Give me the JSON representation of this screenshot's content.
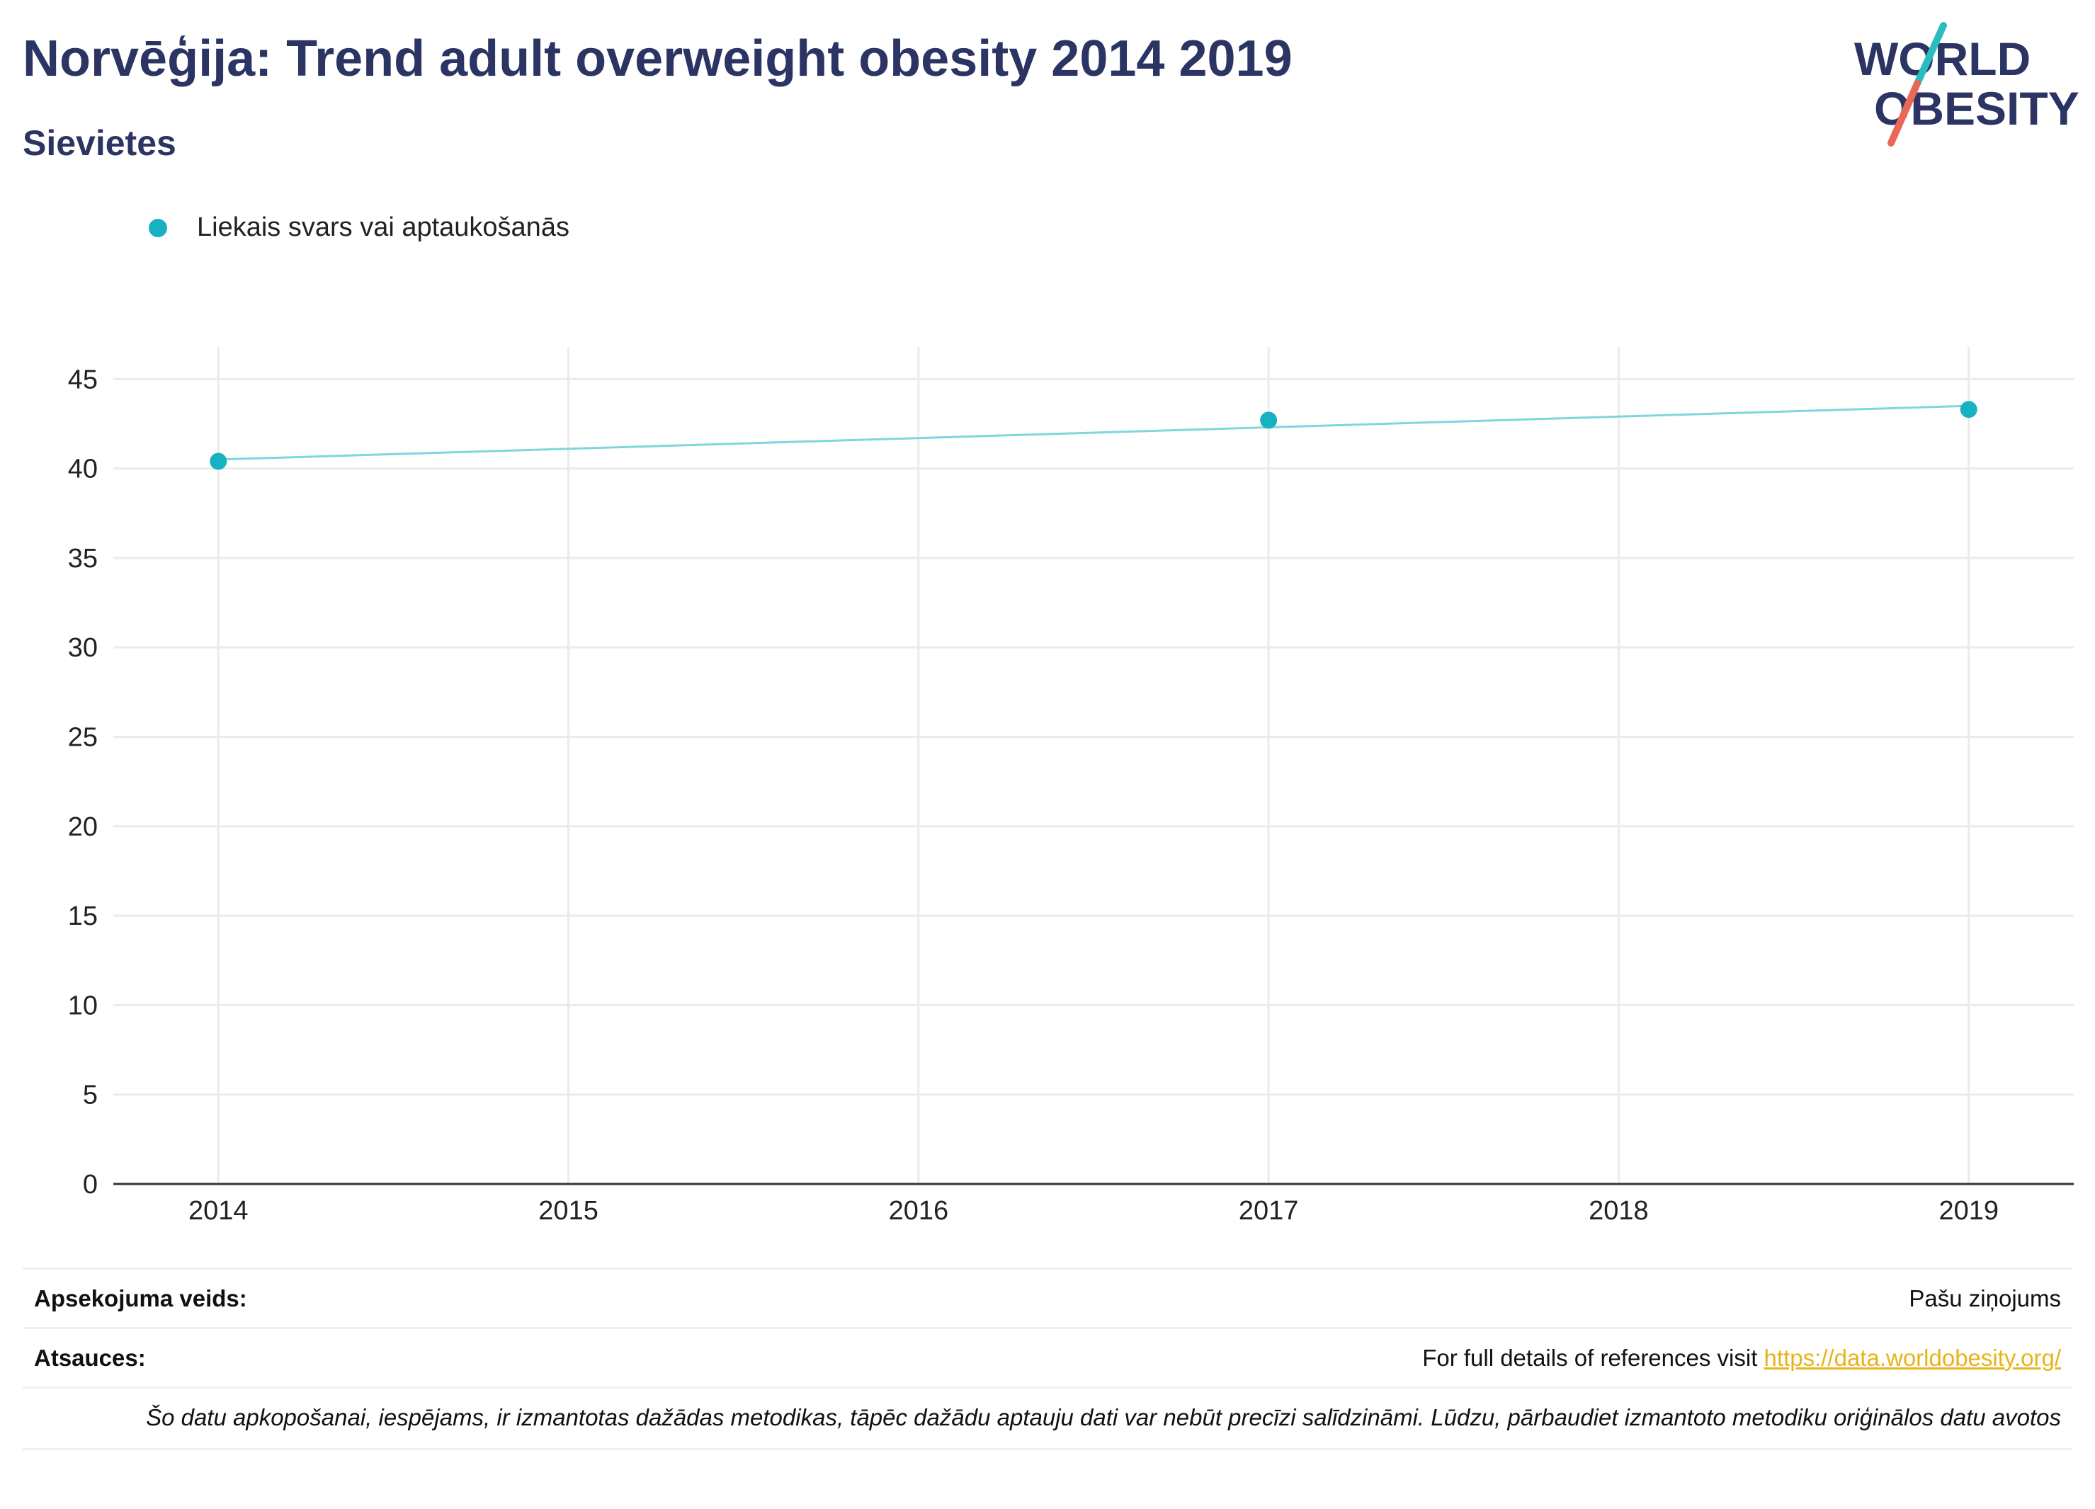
{
  "header": {
    "title": "Norvēģija: Trend adult overweight obesity 2014 2019",
    "subtitle": "Sievietes"
  },
  "logo": {
    "line1": "WORLD",
    "line2": "OBESITY",
    "accent_teal": "#2bbcc0",
    "accent_red": "#e8685a",
    "text_color": "#2b3463"
  },
  "colors": {
    "series": "#17b1c2",
    "trendline": "#7fd6dc",
    "grid": "#ebebeb",
    "axis": "#333333"
  },
  "chart_data": {
    "type": "scatter",
    "title": "Norvēģija: Trend adult overweight obesity 2014 2019",
    "subtitle": "Sievietes",
    "x_ticks": [
      "2014",
      "2015",
      "2016",
      "2017",
      "2018",
      "2019"
    ],
    "y_ticks": [
      "0",
      "5",
      "10",
      "15",
      "20",
      "25",
      "30",
      "35",
      "40",
      "45"
    ],
    "xlim": [
      2013.7,
      2019.3
    ],
    "ylim": [
      0,
      46
    ],
    "grid": true,
    "legend_position": "top-left",
    "series": [
      {
        "name": "Liekais svars vai aptaukošanās",
        "x": [
          2014,
          2017,
          2019
        ],
        "y": [
          40.4,
          42.7,
          43.3
        ]
      }
    ],
    "trendline": {
      "x": [
        2014,
        2019
      ],
      "y": [
        40.5,
        43.5
      ]
    }
  },
  "footer": {
    "survey_type_label": "Apsekojuma veids:",
    "survey_type_value": "Pašu ziņojums",
    "references_label": "Atsauces:",
    "references_text": "For full details of references visit",
    "references_link": "https://data.worldobesity.org/",
    "note": "Šo datu apkopošanai, iespējams, ir izmantotas dažādas metodikas, tāpēc dažādu aptauju dati var nebūt precīzi salīdzināmi. Lūdzu, pārbaudiet izmantoto metodiku oriģinālos datu avotos"
  }
}
